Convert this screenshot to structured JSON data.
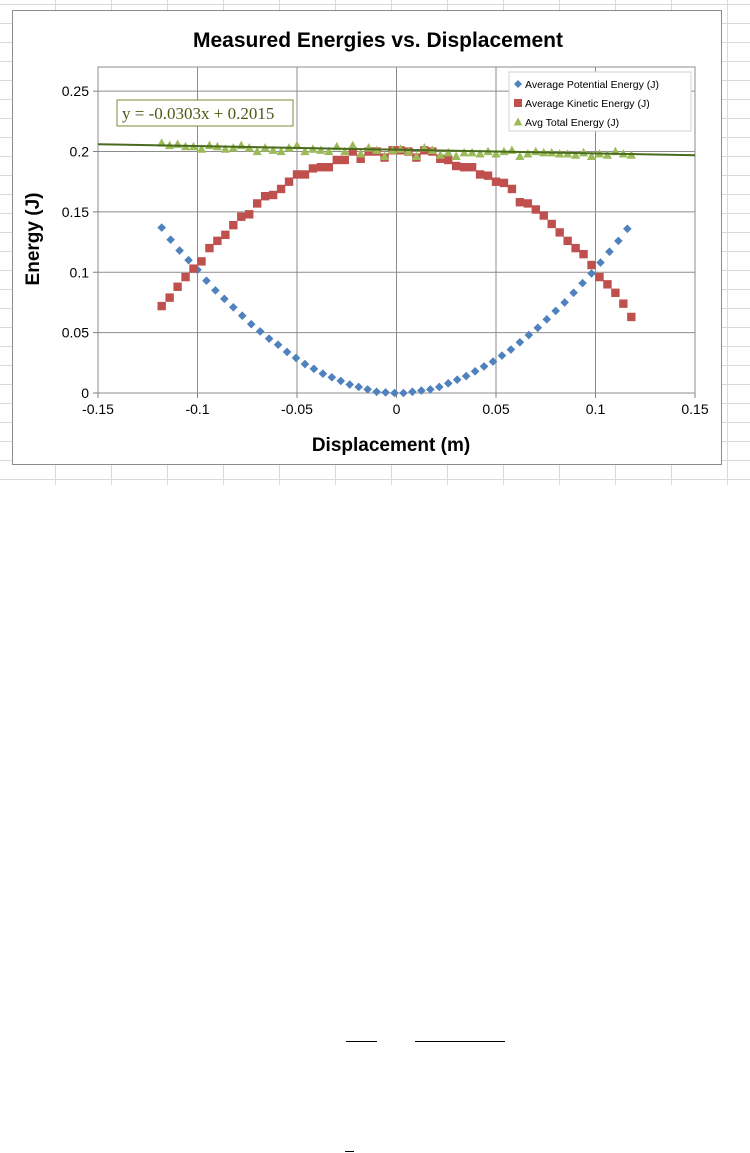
{
  "sheet": {
    "grid_color": "#d9d9d9"
  },
  "chart_data": {
    "type": "scatter",
    "title": "Measured Energies vs. Displacement",
    "xlabel": "Displacement (m)",
    "ylabel": "Energy (J)",
    "xlim": [
      -0.15,
      0.15
    ],
    "ylim": [
      0,
      0.27
    ],
    "x_ticks": [
      "-0.15",
      "-0.1",
      "-0.05",
      "0",
      "0.05",
      "0.1",
      "0.15"
    ],
    "y_ticks": [
      "0",
      "0.05",
      "0.1",
      "0.15",
      "0.2",
      "0.25"
    ],
    "grid": "horizontal and vertical major gridlines",
    "legend_position": "top-right, inside plot",
    "trendline": {
      "series": "Avg Total Energy (J)",
      "type": "linear",
      "slope": -0.0303,
      "intercept": 0.2015,
      "equation_label": "y = -0.0303x + 0.2015",
      "color": "#4a6b1e"
    },
    "series": [
      {
        "name": "Average Potential Energy (J)",
        "marker": "diamond",
        "color": "#4f81bd",
        "points": [
          [
            -0.118,
            0.137
          ],
          [
            -0.1135,
            0.127
          ],
          [
            -0.109,
            0.118
          ],
          [
            -0.1045,
            0.11
          ],
          [
            -0.1,
            0.102
          ],
          [
            -0.0955,
            0.093
          ],
          [
            -0.091,
            0.085
          ],
          [
            -0.0865,
            0.078
          ],
          [
            -0.082,
            0.071
          ],
          [
            -0.0775,
            0.064
          ],
          [
            -0.073,
            0.057
          ],
          [
            -0.0685,
            0.051
          ],
          [
            -0.064,
            0.045
          ],
          [
            -0.0595,
            0.04
          ],
          [
            -0.055,
            0.034
          ],
          [
            -0.0505,
            0.029
          ],
          [
            -0.046,
            0.024
          ],
          [
            -0.0415,
            0.02
          ],
          [
            -0.037,
            0.016
          ],
          [
            -0.0325,
            0.013
          ],
          [
            -0.028,
            0.01
          ],
          [
            -0.0235,
            0.007
          ],
          [
            -0.019,
            0.005
          ],
          [
            -0.0145,
            0.003
          ],
          [
            -0.01,
            0.001
          ],
          [
            -0.0055,
            0.0005
          ],
          [
            -0.001,
            0.0
          ],
          [
            0.0035,
            0.0
          ],
          [
            0.008,
            0.001
          ],
          [
            0.0125,
            0.002
          ],
          [
            0.017,
            0.003
          ],
          [
            0.0215,
            0.005
          ],
          [
            0.026,
            0.008
          ],
          [
            0.0305,
            0.011
          ],
          [
            0.035,
            0.014
          ],
          [
            0.0395,
            0.018
          ],
          [
            0.044,
            0.022
          ],
          [
            0.0485,
            0.026
          ],
          [
            0.053,
            0.031
          ],
          [
            0.0575,
            0.036
          ],
          [
            0.062,
            0.042
          ],
          [
            0.0665,
            0.048
          ],
          [
            0.071,
            0.054
          ],
          [
            0.0755,
            0.061
          ],
          [
            0.08,
            0.068
          ],
          [
            0.0845,
            0.075
          ],
          [
            0.089,
            0.083
          ],
          [
            0.0935,
            0.091
          ],
          [
            0.098,
            0.099
          ],
          [
            0.1025,
            0.108
          ],
          [
            0.107,
            0.117
          ],
          [
            0.1115,
            0.126
          ],
          [
            0.116,
            0.136
          ]
        ]
      },
      {
        "name": "Average Kinetic Energy (J)",
        "marker": "square",
        "color": "#c0504d",
        "points": [
          [
            -0.118,
            0.072
          ],
          [
            -0.114,
            0.079
          ],
          [
            -0.11,
            0.088
          ],
          [
            -0.106,
            0.096
          ],
          [
            -0.102,
            0.103
          ],
          [
            -0.098,
            0.109
          ],
          [
            -0.094,
            0.12
          ],
          [
            -0.09,
            0.126
          ],
          [
            -0.086,
            0.131
          ],
          [
            -0.082,
            0.139
          ],
          [
            -0.078,
            0.146
          ],
          [
            -0.074,
            0.148
          ],
          [
            -0.07,
            0.157
          ],
          [
            -0.066,
            0.163
          ],
          [
            -0.062,
            0.164
          ],
          [
            -0.058,
            0.169
          ],
          [
            -0.054,
            0.175
          ],
          [
            -0.05,
            0.181
          ],
          [
            -0.046,
            0.181
          ],
          [
            -0.042,
            0.186
          ],
          [
            -0.038,
            0.187
          ],
          [
            -0.034,
            0.187
          ],
          [
            -0.03,
            0.193
          ],
          [
            -0.026,
            0.193
          ],
          [
            -0.022,
            0.2
          ],
          [
            -0.018,
            0.194
          ],
          [
            -0.014,
            0.2
          ],
          [
            -0.01,
            0.2
          ],
          [
            -0.006,
            0.195
          ],
          [
            -0.002,
            0.201
          ],
          [
            0.002,
            0.201
          ],
          [
            0.006,
            0.2
          ],
          [
            0.01,
            0.195
          ],
          [
            0.014,
            0.201
          ],
          [
            0.018,
            0.2
          ],
          [
            0.022,
            0.194
          ],
          [
            0.026,
            0.193
          ],
          [
            0.03,
            0.188
          ],
          [
            0.034,
            0.187
          ],
          [
            0.038,
            0.187
          ],
          [
            0.042,
            0.181
          ],
          [
            0.046,
            0.18
          ],
          [
            0.05,
            0.175
          ],
          [
            0.054,
            0.174
          ],
          [
            0.058,
            0.169
          ],
          [
            0.062,
            0.158
          ],
          [
            0.066,
            0.157
          ],
          [
            0.07,
            0.152
          ],
          [
            0.074,
            0.147
          ],
          [
            0.078,
            0.14
          ],
          [
            0.082,
            0.133
          ],
          [
            0.086,
            0.126
          ],
          [
            0.09,
            0.12
          ],
          [
            0.094,
            0.115
          ],
          [
            0.098,
            0.106
          ],
          [
            0.102,
            0.096
          ],
          [
            0.106,
            0.09
          ],
          [
            0.11,
            0.083
          ],
          [
            0.114,
            0.074
          ],
          [
            0.118,
            0.063
          ]
        ]
      },
      {
        "name": "Avg Total Energy (J)",
        "marker": "triangle",
        "color": "#9bbb59",
        "points": [
          [
            -0.118,
            0.207
          ],
          [
            -0.114,
            0.205
          ],
          [
            -0.11,
            0.206
          ],
          [
            -0.106,
            0.204
          ],
          [
            -0.102,
            0.204
          ],
          [
            -0.098,
            0.202
          ],
          [
            -0.094,
            0.205
          ],
          [
            -0.09,
            0.204
          ],
          [
            -0.086,
            0.202
          ],
          [
            -0.082,
            0.203
          ],
          [
            -0.078,
            0.205
          ],
          [
            -0.074,
            0.203
          ],
          [
            -0.07,
            0.2
          ],
          [
            -0.066,
            0.203
          ],
          [
            -0.062,
            0.201
          ],
          [
            -0.058,
            0.2
          ],
          [
            -0.054,
            0.203
          ],
          [
            -0.05,
            0.205
          ],
          [
            -0.046,
            0.2
          ],
          [
            -0.042,
            0.202
          ],
          [
            -0.038,
            0.201
          ],
          [
            -0.034,
            0.2
          ],
          [
            -0.03,
            0.204
          ],
          [
            -0.026,
            0.2
          ],
          [
            -0.022,
            0.205
          ],
          [
            -0.018,
            0.198
          ],
          [
            -0.014,
            0.203
          ],
          [
            -0.01,
            0.201
          ],
          [
            -0.006,
            0.196
          ],
          [
            -0.002,
            0.201
          ],
          [
            0.002,
            0.202
          ],
          [
            0.006,
            0.2
          ],
          [
            0.01,
            0.196
          ],
          [
            0.014,
            0.203
          ],
          [
            0.018,
            0.201
          ],
          [
            0.022,
            0.197
          ],
          [
            0.026,
            0.199
          ],
          [
            0.03,
            0.196
          ],
          [
            0.034,
            0.199
          ],
          [
            0.038,
            0.199
          ],
          [
            0.042,
            0.198
          ],
          [
            0.046,
            0.2
          ],
          [
            0.05,
            0.198
          ],
          [
            0.054,
            0.2
          ],
          [
            0.058,
            0.201
          ],
          [
            0.062,
            0.196
          ],
          [
            0.066,
            0.198
          ],
          [
            0.07,
            0.2
          ],
          [
            0.074,
            0.199
          ],
          [
            0.078,
            0.199
          ],
          [
            0.082,
            0.198
          ],
          [
            0.086,
            0.198
          ],
          [
            0.09,
            0.197
          ],
          [
            0.094,
            0.199
          ],
          [
            0.098,
            0.196
          ],
          [
            0.102,
            0.198
          ],
          [
            0.106,
            0.197
          ],
          [
            0.11,
            0.2
          ],
          [
            0.114,
            0.198
          ],
          [
            0.118,
            0.197
          ]
        ]
      }
    ]
  }
}
